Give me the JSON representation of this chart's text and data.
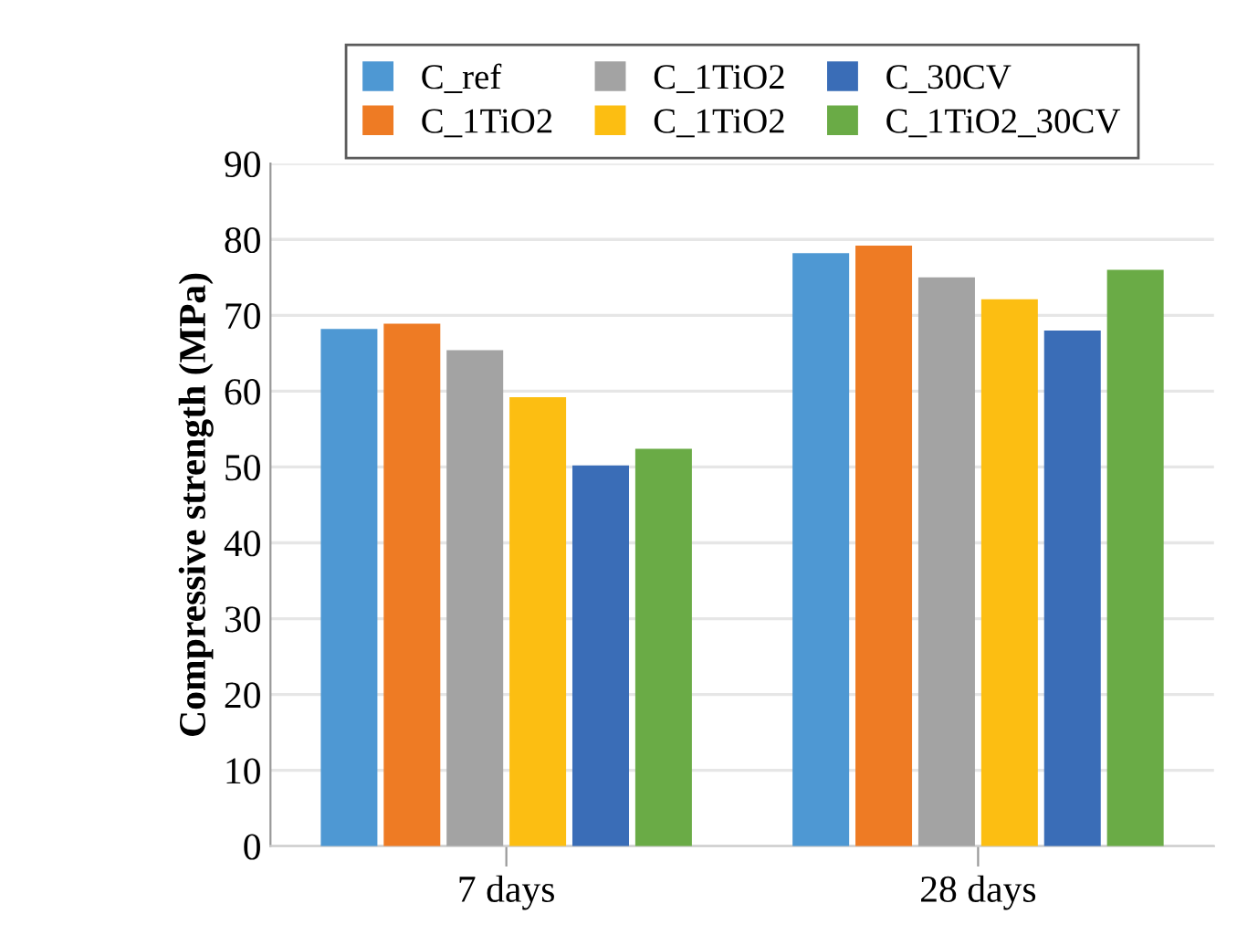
{
  "chart_data": {
    "type": "bar",
    "ylabel": "Compressive strength (MPa)",
    "categories": [
      "7 days",
      "28 days"
    ],
    "series": [
      {
        "name": "C_ref",
        "color": "#4e98d3",
        "values": [
          68.2,
          78.2
        ]
      },
      {
        "name": "C_1TiO2",
        "color": "#ee7b24",
        "values": [
          68.9,
          79.2
        ]
      },
      {
        "name": "C_1TiO2",
        "color": "#a3a3a3",
        "values": [
          65.4,
          75.0
        ]
      },
      {
        "name": "C_1TiO2",
        "color": "#fcbe12",
        "values": [
          59.2,
          72.1
        ]
      },
      {
        "name": "C_30CV",
        "color": "#3a6db7",
        "values": [
          50.2,
          68.0
        ]
      },
      {
        "name": "C_1TiO2_30CV",
        "color": "#6aab46",
        "values": [
          52.4,
          76.0
        ]
      }
    ],
    "ylim": [
      0,
      90
    ],
    "yticks": [
      0,
      10,
      20,
      30,
      40,
      50,
      60,
      70,
      80,
      90
    ],
    "grid": "y",
    "legend": "top"
  }
}
